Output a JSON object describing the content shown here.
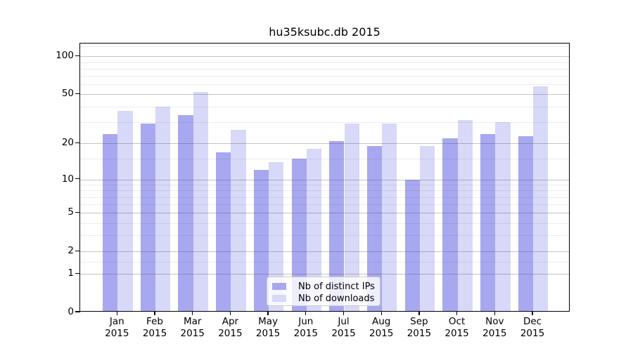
{
  "title": "hu35ksubc.db 2015",
  "legend": {
    "items": [
      {
        "label": "Nb of distinct IPs",
        "color": "#a8a8f0"
      },
      {
        "label": "Nb of downloads",
        "color": "#d8d8f8"
      }
    ]
  },
  "chart_data": {
    "type": "bar",
    "title": "hu35ksubc.db 2015",
    "categories": [
      "Jan 2015",
      "Feb 2015",
      "Mar 2015",
      "Apr 2015",
      "May 2015",
      "Jun 2015",
      "Jul 2015",
      "Aug 2015",
      "Sep 2015",
      "Oct 2015",
      "Nov 2015",
      "Dec 2015"
    ],
    "months": [
      "Jan",
      "Feb",
      "Mar",
      "Apr",
      "May",
      "Jun",
      "Jul",
      "Aug",
      "Sep",
      "Oct",
      "Nov",
      "Dec"
    ],
    "year_label": "2015",
    "series": [
      {
        "name": "Nb of distinct IPs",
        "color": "#a8a8f0",
        "values": [
          24,
          29,
          34,
          17,
          12,
          15,
          21,
          19,
          10,
          22,
          24,
          23
        ]
      },
      {
        "name": "Nb of downloads",
        "color": "#d8d8f8",
        "values": [
          37,
          40,
          52,
          26,
          14,
          18,
          29,
          29,
          19,
          31,
          30,
          58
        ]
      }
    ],
    "xlabel": "",
    "ylabel": "",
    "yscale": "log1p",
    "ylim": [
      0,
      127
    ],
    "y_ticks": [
      0,
      1,
      2,
      5,
      10,
      20,
      50,
      100
    ],
    "y_minor_ticks": [
      1.5,
      3,
      4,
      6,
      7,
      8,
      9,
      15,
      30,
      40,
      60,
      70,
      80,
      90,
      120
    ],
    "grid": "both",
    "legend_position": "lower center"
  }
}
